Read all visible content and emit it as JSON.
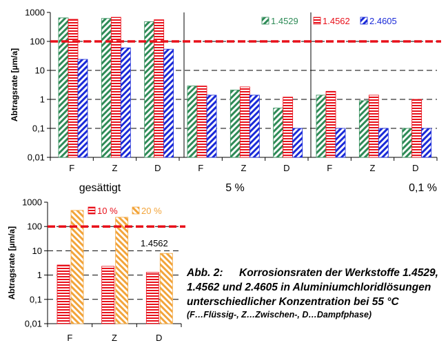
{
  "chart_data": [
    {
      "type": "bar",
      "ylabel": "Abtragsrate [µm/a]",
      "yscale": "log",
      "ylim": [
        0.01,
        1000
      ],
      "yticks": [
        "0,01",
        "0,1",
        "1",
        "10",
        "100",
        "1000"
      ],
      "reference_line": 100,
      "groups": [
        {
          "label": "gesättigt",
          "categories": [
            "F",
            "Z",
            "D"
          ]
        },
        {
          "label": "5 %",
          "categories": [
            "F",
            "Z",
            "D"
          ]
        },
        {
          "label": "0,1 %",
          "categories": [
            "F",
            "Z",
            "D"
          ]
        }
      ],
      "series": [
        {
          "name": "1.4529",
          "color": "#2e8b57",
          "values": [
            650,
            620,
            480,
            2.9,
            2.1,
            0.5,
            1.4,
            0.9,
            0.1
          ]
        },
        {
          "name": "1.4562",
          "color": "#e8101a",
          "values": [
            580,
            680,
            560,
            2.9,
            2.7,
            1.2,
            1.9,
            1.4,
            1.0
          ]
        },
        {
          "name": "2.4605",
          "color": "#1a2ad8",
          "values": [
            24,
            60,
            54,
            1.4,
            1.4,
            0.1,
            0.1,
            0.1,
            0.1
          ]
        }
      ]
    },
    {
      "type": "bar",
      "ylabel": "Abtragsrate [µm/a]",
      "yscale": "log",
      "ylim": [
        0.01,
        1000
      ],
      "yticks": [
        "0,01",
        "0,1",
        "1",
        "10",
        "100",
        "1000"
      ],
      "reference_line": 100,
      "annotation": "1.4562",
      "categories": [
        "F",
        "Z",
        "D"
      ],
      "series": [
        {
          "name": "10 %",
          "color": "#e8101a",
          "values": [
            2.6,
            2.3,
            1.3
          ]
        },
        {
          "name": "20 %",
          "color": "#f2a43a",
          "values": [
            460,
            240,
            7.8
          ]
        }
      ]
    }
  ],
  "caption": {
    "label": "Abb. 2:",
    "text": "Korrosionsraten der Werkstoffe 1.4529, 1.4562 und 2.4605 in Aluminiumchloridlösungen unterschiedlicher Konzentration bei 55 °C",
    "note": "(F…Flüssig-, Z…Zwischen-, D…Dampfphase)"
  }
}
